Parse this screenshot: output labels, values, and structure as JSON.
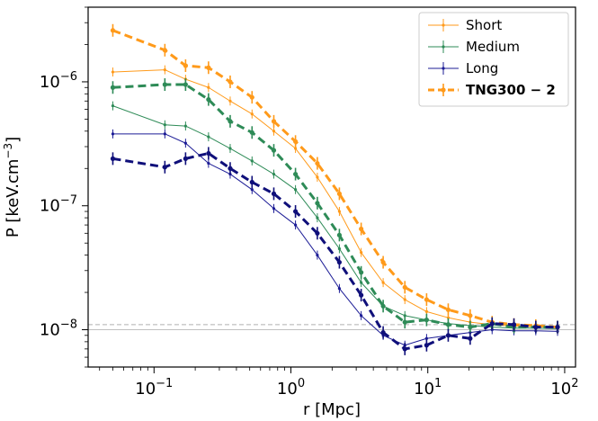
{
  "chart_data": {
    "type": "line",
    "xlabel": "r [Mpc]",
    "ylabel": "P [keV.cm",
    "ylabel_exp": "−3",
    "ylabel_close": "]",
    "xscale": "log",
    "yscale": "log",
    "xlim": [
      0.033,
      120
    ],
    "ylim": [
      5e-09,
      4e-06
    ],
    "x_ticks": [
      {
        "v": 0.1,
        "base": "10",
        "exp": "−1"
      },
      {
        "v": 1,
        "base": "10",
        "exp": "0"
      },
      {
        "v": 10,
        "base": "10",
        "exp": "1"
      },
      {
        "v": 100,
        "base": "10",
        "exp": "2"
      }
    ],
    "y_ticks": [
      {
        "v": 1e-08,
        "base": "10",
        "exp": "−8"
      },
      {
        "v": 1e-07,
        "base": "10",
        "exp": "−7"
      },
      {
        "v": 1e-06,
        "base": "10",
        "exp": "−6"
      }
    ],
    "hlines": [
      {
        "y": 1.1e-08,
        "style": "dashed",
        "color": "#b0b0b0"
      },
      {
        "y": 1e-08,
        "style": "solid",
        "color": "#c0c0c0"
      }
    ],
    "legend_position": "upper right",
    "series": [
      {
        "name": "Short",
        "color": "#ff9a1a",
        "style": "thin",
        "x": [
          0.05,
          0.12,
          0.17,
          0.25,
          0.36,
          0.52,
          0.75,
          1.08,
          1.56,
          2.26,
          3.26,
          4.72,
          6.8,
          9.8,
          14.1,
          20.4,
          29.5,
          42.6,
          61.5,
          88.7
        ],
        "y": [
          1.2e-06,
          1.25e-06,
          1.05e-06,
          9e-07,
          7e-07,
          5.5e-07,
          4e-07,
          2.9e-07,
          1.7e-07,
          9e-08,
          4.2e-08,
          2.4e-08,
          1.75e-08,
          1.4e-08,
          1.25e-08,
          1.15e-08,
          1.1e-08,
          1.07e-08,
          1.06e-08,
          1.05e-08
        ]
      },
      {
        "name": "Medium",
        "color": "#2e8b57",
        "style": "thin",
        "x": [
          0.05,
          0.12,
          0.17,
          0.25,
          0.36,
          0.52,
          0.75,
          1.08,
          1.56,
          2.26,
          3.26,
          4.72,
          6.8,
          9.8,
          14.1,
          20.4,
          29.5,
          42.6,
          61.5,
          88.7
        ],
        "y": [
          6.4e-07,
          4.5e-07,
          4.4e-07,
          3.6e-07,
          2.9e-07,
          2.3e-07,
          1.8e-07,
          1.35e-07,
          8e-08,
          4.5e-08,
          2.4e-08,
          1.55e-08,
          1.3e-08,
          1.2e-08,
          1.12e-08,
          1.08e-08,
          1.05e-08,
          1.03e-08,
          1.03e-08,
          1.02e-08
        ]
      },
      {
        "name": "Long",
        "color": "#1c1c96",
        "style": "thin",
        "x": [
          0.05,
          0.12,
          0.17,
          0.25,
          0.36,
          0.52,
          0.75,
          1.08,
          1.56,
          2.26,
          3.26,
          4.72,
          6.8,
          9.8,
          14.1,
          20.4,
          29.5,
          42.6,
          61.5,
          88.7
        ],
        "y": [
          3.8e-07,
          3.8e-07,
          3.2e-07,
          2.2e-07,
          1.8e-07,
          1.35e-07,
          9.5e-08,
          7e-08,
          4e-08,
          2.15e-08,
          1.3e-08,
          9e-09,
          7.5e-09,
          8.5e-09,
          9e-09,
          9.5e-09,
          1e-08,
          9.8e-09,
          9.8e-09,
          9.7e-09
        ]
      },
      {
        "name": "TNG300 − 2",
        "color": "#ff9a1a",
        "style": "thick",
        "bold": true,
        "x": [
          0.05,
          0.12,
          0.17,
          0.25,
          0.36,
          0.52,
          0.75,
          1.08,
          1.56,
          2.26,
          3.26,
          4.72,
          6.8,
          9.8,
          14.1,
          20.4,
          29.5,
          42.6,
          61.5,
          88.7
        ],
        "y": [
          2.6e-06,
          1.8e-06,
          1.35e-06,
          1.3e-06,
          1e-06,
          7.5e-07,
          4.8e-07,
          3.3e-07,
          2.2e-07,
          1.25e-07,
          6.5e-08,
          3.5e-08,
          2.2e-08,
          1.75e-08,
          1.45e-08,
          1.3e-08,
          1.15e-08,
          1.1e-08,
          1.08e-08,
          1.05e-08
        ]
      },
      {
        "name": "",
        "color": "#2e8b57",
        "style": "thick",
        "x": [
          0.05,
          0.12,
          0.17,
          0.25,
          0.36,
          0.52,
          0.75,
          1.08,
          1.56,
          2.26,
          3.26,
          4.72,
          6.8,
          9.8,
          14.1,
          20.4,
          29.5,
          42.6,
          61.5,
          88.7
        ],
        "y": [
          9e-07,
          9.5e-07,
          9.5e-07,
          7.2e-07,
          4.8e-07,
          3.9e-07,
          2.8e-07,
          1.8e-07,
          1.05e-07,
          5.8e-08,
          2.9e-08,
          1.55e-08,
          1.15e-08,
          1.2e-08,
          1.1e-08,
          1.05e-08,
          1.12e-08,
          1.05e-08,
          1.05e-08,
          1.05e-08
        ]
      },
      {
        "name": "",
        "color": "#0f0f7a",
        "style": "thick",
        "x": [
          0.05,
          0.12,
          0.17,
          0.25,
          0.36,
          0.52,
          0.75,
          1.08,
          1.56,
          2.26,
          3.26,
          4.72,
          6.8,
          9.8,
          14.1,
          20.4,
          29.5,
          42.6,
          61.5,
          88.7
        ],
        "y": [
          2.4e-07,
          2.05e-07,
          2.4e-07,
          2.65e-07,
          2e-07,
          1.55e-07,
          1.25e-07,
          9e-08,
          6e-08,
          3.5e-08,
          1.9e-08,
          9.5e-09,
          7e-09,
          7.5e-09,
          9e-09,
          8.5e-09,
          1.12e-08,
          1.1e-08,
          1.05e-08,
          1.05e-08
        ]
      }
    ]
  }
}
